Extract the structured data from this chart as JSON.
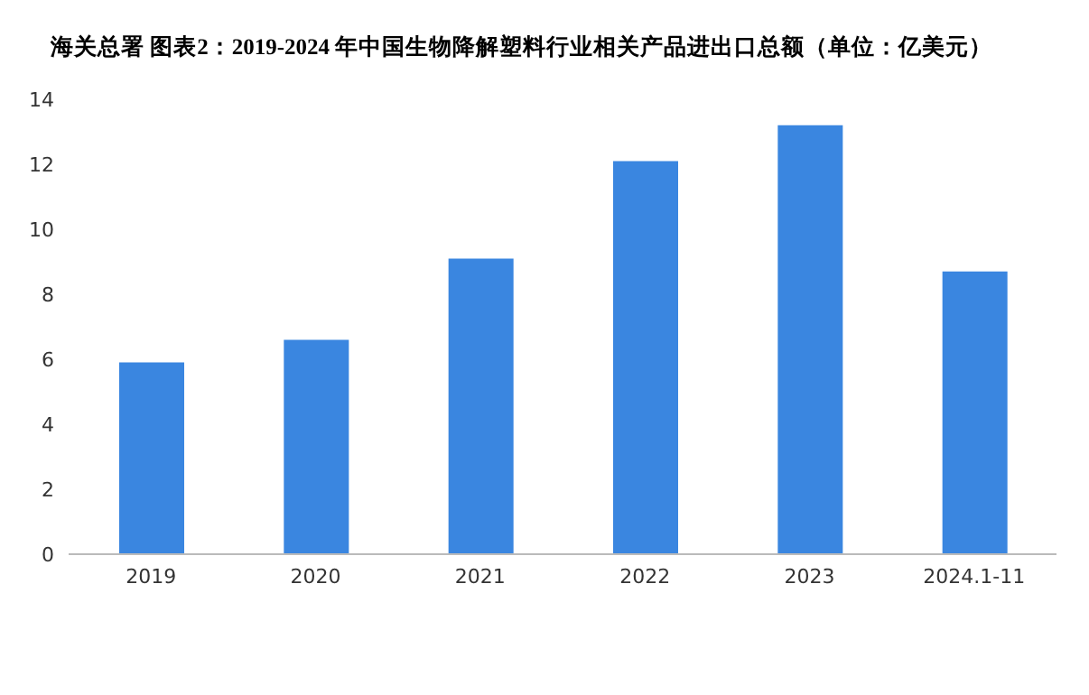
{
  "chart_data": {
    "type": "bar",
    "title": "海关总署 图表2：2019-2024 年中国生物降解塑料行业相关产品进出口总额（单位：亿美元）",
    "categories": [
      "2019",
      "2020",
      "2021",
      "2022",
      "2023",
      "2024.1-11"
    ],
    "values": [
      5.9,
      6.6,
      9.1,
      12.1,
      13.2,
      8.7
    ],
    "color": "#3a86e0",
    "ylim": [
      0,
      14
    ],
    "yticks": [
      0,
      2,
      4,
      6,
      8,
      10,
      12,
      14
    ],
    "grid": false
  }
}
